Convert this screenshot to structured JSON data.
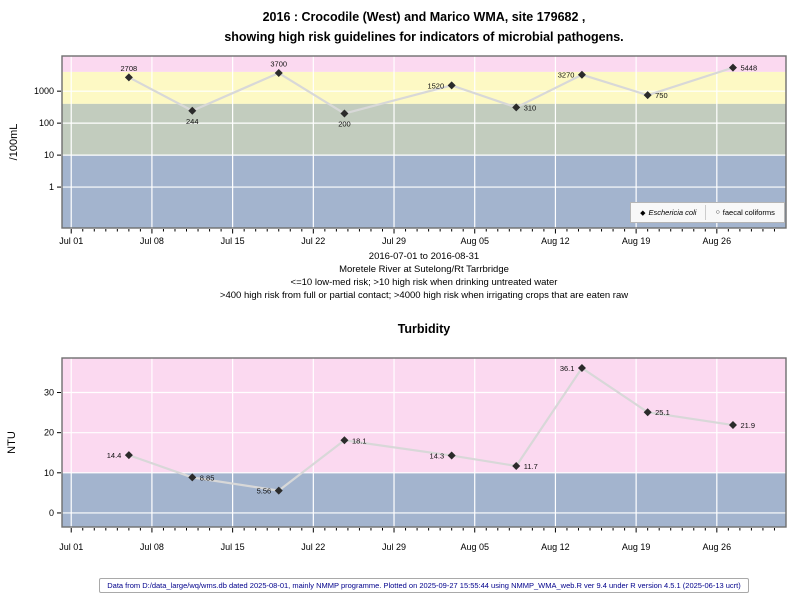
{
  "title": {
    "line1": "2016 : Crocodile (West) and Marico WMA, site 179682 ,",
    "line2": "showing high risk guidelines for indicators of microbial pathogens."
  },
  "subtitle": {
    "lines": [
      "2016-07-01 to 2016-08-31",
      "Moretele River at Sutelong/Rt Tarrbridge",
      "<=10 low-med risk; >10 high risk when drinking untreated water",
      ">400 high risk from full or partial contact; >4000 high risk when irrigating crops that are eaten raw"
    ]
  },
  "legend": {
    "items": [
      {
        "symbol": "filled-diamond",
        "glyph": "◆",
        "label": "Eschericia coli"
      },
      {
        "symbol": "open-circle",
        "glyph": "○",
        "label": "faecal coliforms"
      }
    ]
  },
  "footer": "Data from D:/data_large/wq/wms.db dated 2025-08-01, mainly NMMP programme. Plotted on 2025-09-27 15:55:44 using NMMP_WMA_web.R ver 9.4 under R version 4.5.1 (2025-06-13 ucrt)",
  "colors": {
    "band_pink": "#fbd9f0",
    "band_yellow": "#fdf9c4",
    "band_green": "#c2ccbe",
    "band_blue": "#a3b4ce",
    "grid": "#ffffff",
    "border": "#6f6f6f",
    "line": "#d8d8d8",
    "point": "#2b2b2b",
    "tick": "#000000",
    "footer_text": "#00008b"
  },
  "chart_data": [
    {
      "type": "line",
      "title": "",
      "ylabel": "/100mL",
      "yscale": "log10",
      "y_ticks": [
        1,
        10,
        100,
        1000
      ],
      "y_domain_log10": [
        -1.28,
        4.1
      ],
      "x_tick_labels": [
        "Jul 01",
        "Jul 08",
        "Jul 15",
        "Jul 22",
        "Jul 29",
        "Aug 05",
        "Aug 12",
        "Aug 19",
        "Aug 26"
      ],
      "x_tick_days": [
        0,
        7,
        14,
        21,
        28,
        35,
        42,
        49,
        56
      ],
      "x_domain_days": [
        -0.8,
        62.0
      ],
      "x_minor_tick_days": 61,
      "x_range_label": "2016-07-01 to 2016-08-31",
      "bands": [
        {
          "from": 4000,
          "to": "top",
          "color": "pink",
          "meaning": ">4000 high risk when irrigating crops eaten raw"
        },
        {
          "from": 400,
          "to": 4000,
          "color": "yellow",
          "meaning": ">400 high risk from full or partial contact"
        },
        {
          "from": 10,
          "to": 400,
          "color": "green",
          "meaning": ">10 high risk when drinking untreated water"
        },
        {
          "from": "bottom",
          "to": 10,
          "color": "blue",
          "meaning": "<=10 low-med risk"
        }
      ],
      "series": [
        {
          "name": "Eschericia coli",
          "marker": "filled-diamond",
          "days": [
            5,
            10.5,
            18,
            23.7,
            33,
            38.6,
            44.3,
            50,
            57.4
          ],
          "values": [
            2708,
            244,
            3700,
            200,
            1520,
            310,
            3270,
            750,
            5448
          ],
          "labels": [
            "2708",
            "244",
            "3700",
            "200",
            "1520",
            "310",
            "3270",
            "750",
            "5448"
          ],
          "label_sides": [
            "above",
            "below",
            "above",
            "below",
            "left",
            "right",
            "left",
            "right",
            "right"
          ]
        }
      ]
    },
    {
      "type": "line",
      "title": "Turbidity",
      "ylabel": "NTU",
      "yscale": "linear",
      "y_ticks": [
        0,
        10,
        20,
        30
      ],
      "y_domain": [
        -3.5,
        38.6
      ],
      "x_tick_labels": [
        "Jul 01",
        "Jul 08",
        "Jul 15",
        "Jul 22",
        "Jul 29",
        "Aug 05",
        "Aug 12",
        "Aug 19",
        "Aug 26"
      ],
      "x_tick_days": [
        0,
        7,
        14,
        21,
        28,
        35,
        42,
        49,
        56
      ],
      "x_domain_days": [
        -0.8,
        62.0
      ],
      "x_minor_tick_days": 61,
      "bands": [
        {
          "from": 10,
          "to": "top",
          "color": "pink",
          "meaning": "above 10 NTU"
        },
        {
          "from": "bottom",
          "to": 10,
          "color": "blue",
          "meaning": "10 NTU and below"
        }
      ],
      "series": [
        {
          "name": "Turbidity",
          "marker": "filled-diamond",
          "days": [
            5,
            10.5,
            18,
            23.7,
            33,
            38.6,
            44.3,
            50,
            57.4
          ],
          "values": [
            14.4,
            8.85,
            5.56,
            18.1,
            14.3,
            11.7,
            36.1,
            25.1,
            21.9
          ],
          "labels": [
            "14.4",
            "8.85",
            "5.56",
            "18.1",
            "14.3",
            "11.7",
            "36.1",
            "25.1",
            "21.9"
          ],
          "label_sides": [
            "left",
            "right",
            "left",
            "right",
            "left",
            "right",
            "left",
            "right",
            "right"
          ]
        }
      ]
    }
  ]
}
